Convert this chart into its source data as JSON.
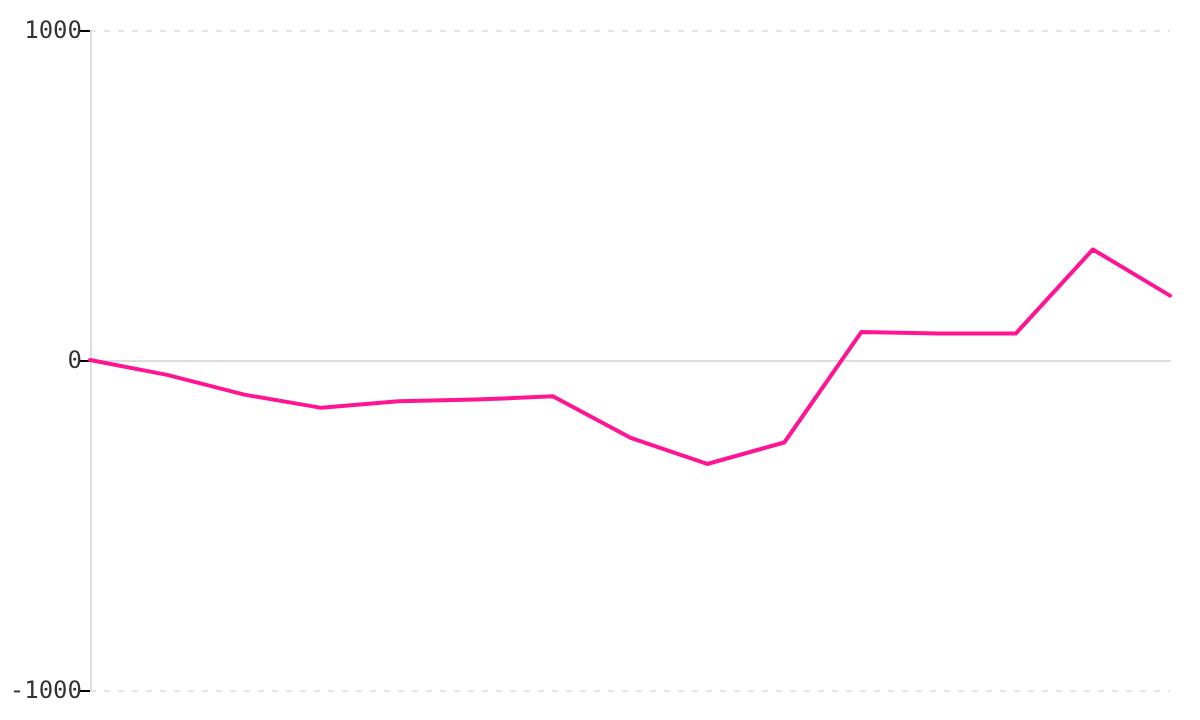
{
  "chart_data": {
    "type": "line",
    "categories": [
      null,
      null,
      null,
      null,
      null,
      null,
      null,
      null,
      null,
      null,
      null,
      null,
      null,
      null,
      null
    ],
    "series": [
      {
        "color": "#ff1493",
        "values": [
          0,
          -45,
          -105,
          -145,
          -125,
          -120,
          -110,
          -235,
          -315,
          -250,
          85,
          80,
          80,
          335,
          195
        ]
      }
    ],
    "ylim": [
      -1000,
      1000
    ],
    "yticks": [
      -1000,
      0,
      1000
    ],
    "grid": "y",
    "tick_labels": "y",
    "marker": "none",
    "line_style": "solid"
  }
}
